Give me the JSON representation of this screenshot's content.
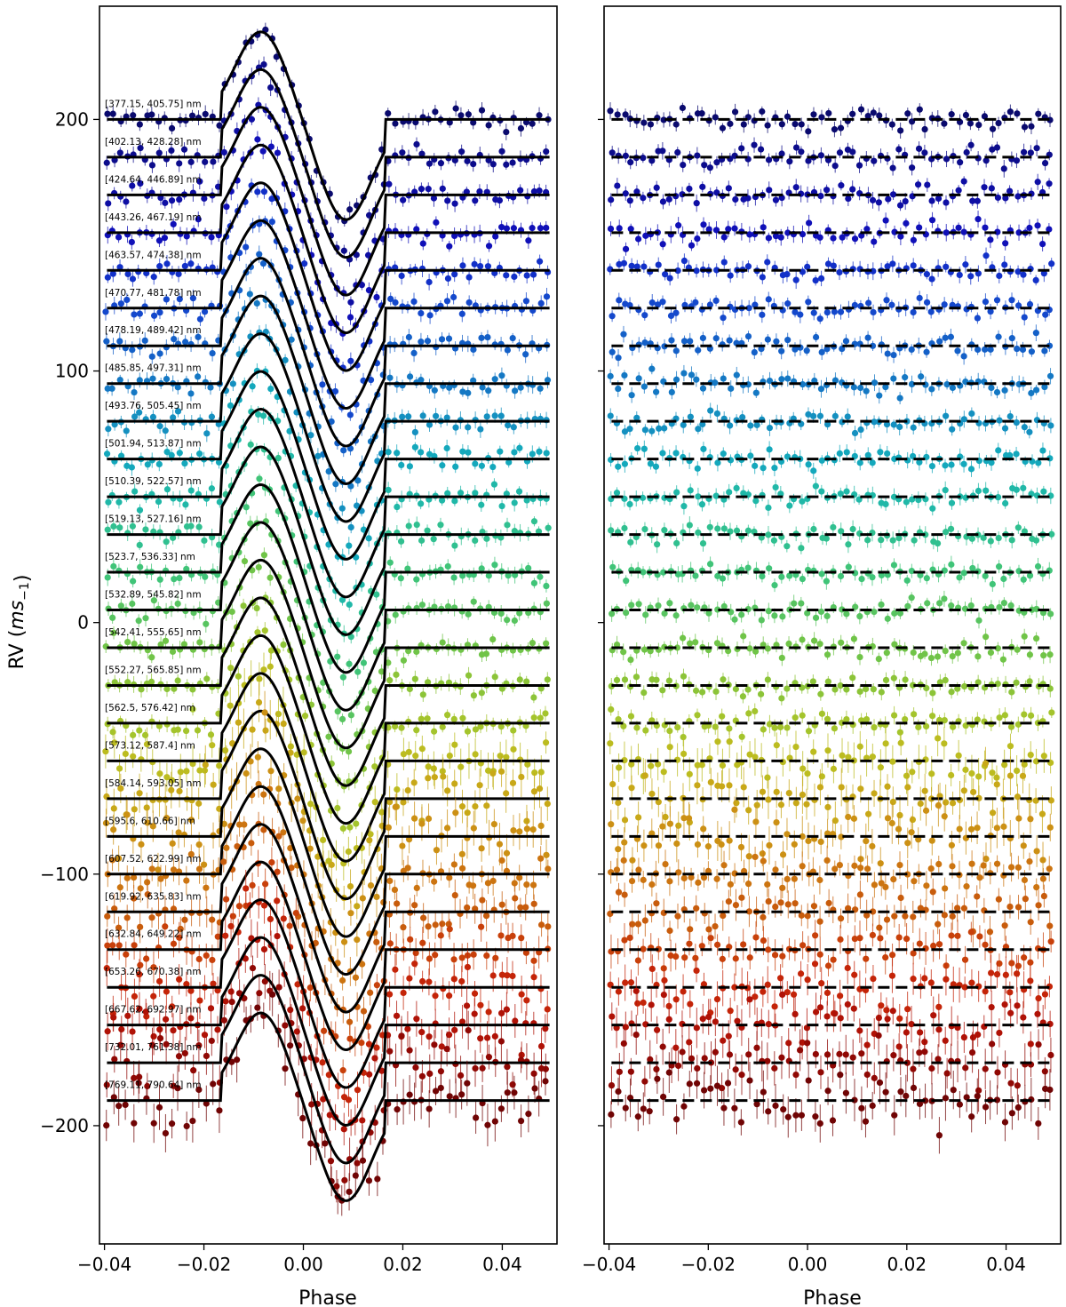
{
  "chart_data": [
    {
      "type": "scatter",
      "panel": "left",
      "xlabel": "Phase",
      "ylabel": "RV (ms−1)",
      "xlim": [
        -0.041,
        0.051
      ],
      "ylim": [
        -247,
        245
      ],
      "xticks": [
        -0.04,
        -0.02,
        0.0,
        0.02,
        0.04
      ],
      "xtick_labels": [
        "−0.04",
        "−0.02",
        "0.00",
        "0.02",
        "0.04"
      ],
      "yticks": [
        200,
        100,
        0,
        -100,
        -200
      ],
      "ytick_labels": [
        "200",
        "100",
        "0",
        "−100",
        "−200"
      ],
      "model_line": "solid",
      "model_shape": {
        "transit_phase_range": [
          -0.0165,
          0.0165
        ],
        "peak_phase": -0.0085,
        "peak_amplitude": 35,
        "trough_phase": 0.0085,
        "trough_amplitude": -40
      },
      "series": [
        {
          "name": "[377.15, 405.75] nm",
          "baseline": 200,
          "color": "#0a0a6e"
        },
        {
          "name": "[402.13, 428.28] nm",
          "baseline": 185,
          "color": "#0c0c8c"
        },
        {
          "name": "[424.64, 446.89] nm",
          "baseline": 170,
          "color": "#0e0ea4"
        },
        {
          "name": "[443.26, 467.19] nm",
          "baseline": 155,
          "color": "#1010b8"
        },
        {
          "name": "[463.57, 474.38] nm",
          "baseline": 140,
          "color": "#1230c8"
        },
        {
          "name": "[470.77, 481.78] nm",
          "baseline": 125,
          "color": "#1448cc"
        },
        {
          "name": "[478.19, 489.42] nm",
          "baseline": 110,
          "color": "#1460c8"
        },
        {
          "name": "[485.85, 497.31] nm",
          "baseline": 95,
          "color": "#1478c4"
        },
        {
          "name": "[493.76, 505.45] nm",
          "baseline": 80,
          "color": "#1490c0"
        },
        {
          "name": "[501.94, 513.87] nm",
          "baseline": 65,
          "color": "#14a8bc"
        },
        {
          "name": "[510.39, 522.57] nm",
          "baseline": 50,
          "color": "#20b8a8"
        },
        {
          "name": "[519.13, 527.16] nm",
          "baseline": 35,
          "color": "#30c090"
        },
        {
          "name": "[523.7, 536.33] nm",
          "baseline": 20,
          "color": "#40c478"
        },
        {
          "name": "[532.89, 545.82] nm",
          "baseline": 5,
          "color": "#58c460"
        },
        {
          "name": "[542.41, 555.65] nm",
          "baseline": -10,
          "color": "#70c448"
        },
        {
          "name": "[552.27, 565.85] nm",
          "baseline": -25,
          "color": "#8cc438"
        },
        {
          "name": "[562.5, 576.42] nm",
          "baseline": -40,
          "color": "#a4c42c"
        },
        {
          "name": "[573.12, 587.4] nm",
          "baseline": -55,
          "color": "#bcbc20"
        },
        {
          "name": "[584.14, 593.05] nm",
          "baseline": -70,
          "color": "#c8a818"
        },
        {
          "name": "[595.6, 610.66] nm",
          "baseline": -85,
          "color": "#cc9014"
        },
        {
          "name": "[607.52, 622.99] nm",
          "baseline": -100,
          "color": "#cc7410"
        },
        {
          "name": "[619.92, 635.83] nm",
          "baseline": -115,
          "color": "#c85c0c"
        },
        {
          "name": "[632.84, 649.22] nm",
          "baseline": -130,
          "color": "#c8400a"
        },
        {
          "name": "[653.26, 670.38] nm",
          "baseline": -145,
          "color": "#c42408"
        },
        {
          "name": "[667.62, 692.97] nm",
          "baseline": -160,
          "color": "#b01206"
        },
        {
          "name": "[732.01, 761.38] nm",
          "baseline": -175,
          "color": "#900804"
        },
        {
          "name": "[769.11, 790.64] nm",
          "baseline": -190,
          "color": "#700404"
        }
      ]
    },
    {
      "type": "scatter",
      "panel": "right",
      "xlabel": "Phase",
      "xlim": [
        -0.041,
        0.051
      ],
      "ylim": [
        -247,
        245
      ],
      "xticks": [
        -0.04,
        -0.02,
        0.0,
        0.02,
        0.04
      ],
      "xtick_labels": [
        "−0.04",
        "−0.02",
        "0.00",
        "0.02",
        "0.04"
      ],
      "model_line": "dashed",
      "content": "residuals around each baseline (same series as left panel)"
    }
  ]
}
